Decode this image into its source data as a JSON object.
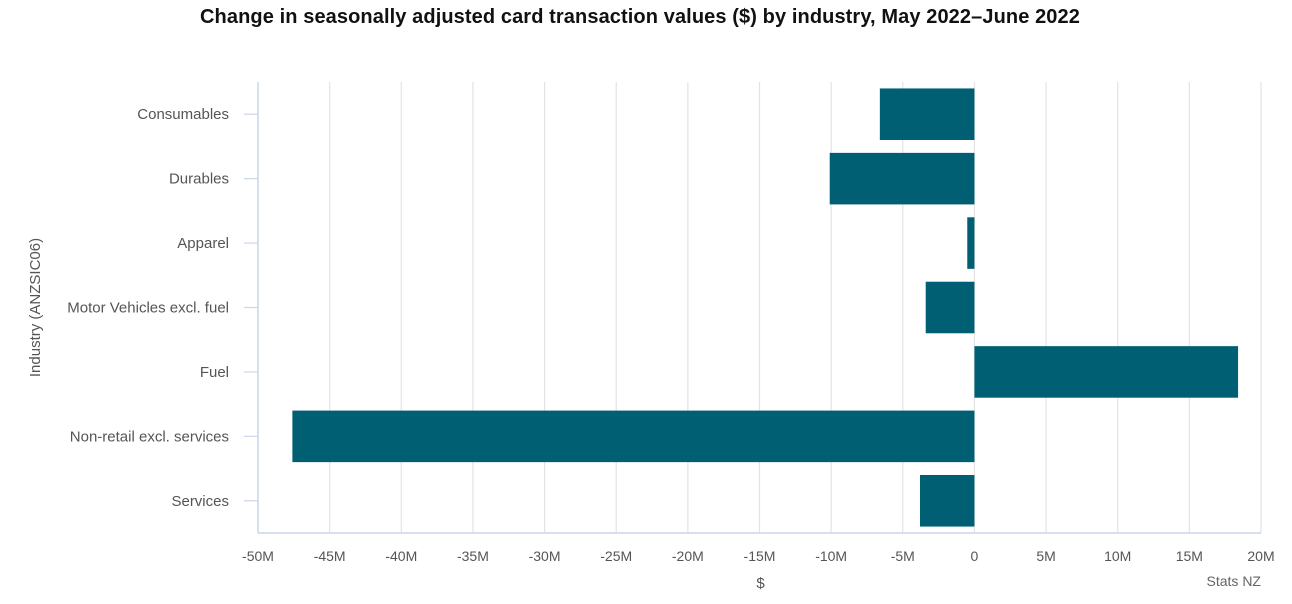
{
  "chart_data": {
    "type": "bar",
    "orientation": "horizontal",
    "title": "Change in seasonally adjusted card transaction values ($) by industry, May 2022–June 2022",
    "xlabel": "$",
    "ylabel": "Industry (ANZSIC06)",
    "credit": "Stats NZ",
    "categories": [
      "Consumables",
      "Durables",
      "Apparel",
      "Motor Vehicles excl. fuel",
      "Fuel",
      "Non-retail excl. services",
      "Services"
    ],
    "series": [
      {
        "name": "Change",
        "color": "#005f73",
        "values": [
          -6600000,
          -10100000,
          -500000,
          -3400000,
          18400000,
          -47600000,
          -3800000
        ]
      }
    ],
    "xlim": [
      -50000000,
      20000000
    ],
    "x_ticks": [
      -50000000,
      -45000000,
      -40000000,
      -35000000,
      -30000000,
      -25000000,
      -20000000,
      -15000000,
      -10000000,
      -5000000,
      0,
      5000000,
      10000000,
      15000000,
      20000000
    ],
    "x_tick_labels": [
      "-50M",
      "-45M",
      "-40M",
      "-35M",
      "-30M",
      "-25M",
      "-20M",
      "-15M",
      "-10M",
      "-5M",
      "0",
      "5M",
      "10M",
      "15M",
      "20M"
    ],
    "grid": true
  }
}
